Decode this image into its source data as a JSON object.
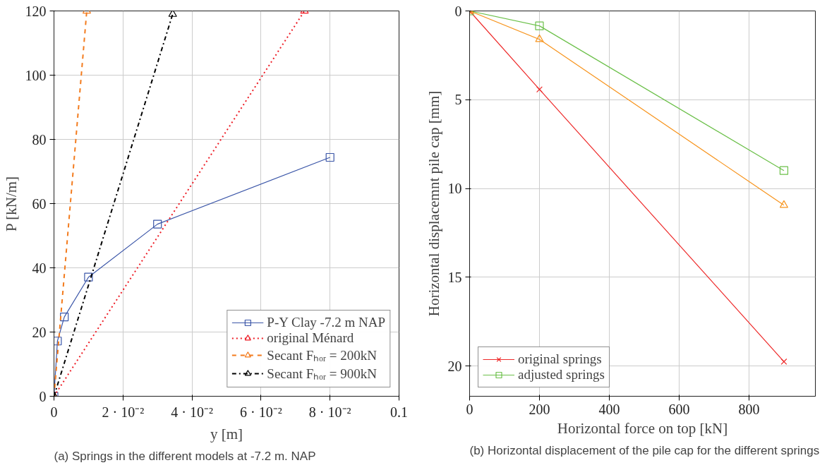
{
  "chart_data": [
    {
      "type": "line",
      "xlabel": "y [m]",
      "ylabel": "P [kN/m]",
      "annotations": [
        "(a) Springs in the different models at -7.2 m. NAP"
      ],
      "xlim": [
        0,
        0.1
      ],
      "ylim": [
        0,
        120
      ],
      "xticks": [
        0,
        {
          "value": 0.02,
          "label": "2 · 10⁻²"
        },
        {
          "value": 0.04,
          "label": "4 · 10⁻²"
        },
        {
          "value": 0.06,
          "label": "6 · 10⁻²"
        },
        {
          "value": 0.08,
          "label": "8 · 10⁻²"
        },
        0.1
      ],
      "yticks": [
        0,
        20,
        40,
        60,
        80,
        100,
        120
      ],
      "grid": true,
      "legend": "bottom right",
      "series": [
        {
          "name": "P-Y Clay -7.2 m NAP",
          "color": "#3b56a8",
          "marker": "square",
          "line_style": "solid",
          "x": [
            0,
            0.001,
            0.003,
            0.01,
            0.03,
            0.08
          ],
          "values": [
            0,
            17.2,
            24.7,
            37.1,
            53.6,
            74.4
          ]
        },
        {
          "name": "original Ménard",
          "color": "#ee1c25",
          "marker": "triangle",
          "line_style": "dotted",
          "x": [
            0,
            0.0726
          ],
          "values": [
            0,
            120
          ]
        },
        {
          "name": "Secant Fₕₒᵣ = 200kN",
          "color": "#f37b1d",
          "marker": "triangle",
          "line_style": "dashed",
          "x": [
            0,
            0.0095
          ],
          "values": [
            0,
            120
          ]
        },
        {
          "name": "Secant Fₕₒᵣ = 900kN",
          "color": "#000000",
          "marker": "triangle",
          "line_style": "dashdot",
          "x": [
            0,
            0.0344
          ],
          "values": [
            0,
            119
          ]
        }
      ]
    },
    {
      "type": "line",
      "xlabel": "Horizontal force on top [kN]",
      "ylabel": "Horizontal displacemnt pile cap [mm]",
      "annotations": [
        "(b) Horizontal displacement of the pile cap for the different springs"
      ],
      "xlim": [
        0,
        990
      ],
      "ylim": [
        21.7,
        0
      ],
      "xticks": [
        0,
        200,
        400,
        600,
        800
      ],
      "yticks": [
        0,
        5,
        10,
        15,
        20
      ],
      "grid": true,
      "legend": "bottom left",
      "series": [
        {
          "name": "original springs",
          "color": "#ee2a2a",
          "marker": "cross",
          "line_style": "solid",
          "x": [
            0,
            200,
            900
          ],
          "values": [
            0,
            4.42,
            19.75
          ]
        },
        {
          "name": "adjusted springs",
          "color": "#6cc04a",
          "marker": "square",
          "line_style": "solid",
          "x": [
            0,
            200,
            900
          ],
          "values": [
            0,
            0.84,
            8.99
          ]
        },
        {
          "color": "#f7941d",
          "marker": "triangle",
          "line_style": "solid",
          "x": [
            0,
            200,
            900
          ],
          "values": [
            0,
            1.6,
            10.94
          ]
        }
      ]
    }
  ]
}
